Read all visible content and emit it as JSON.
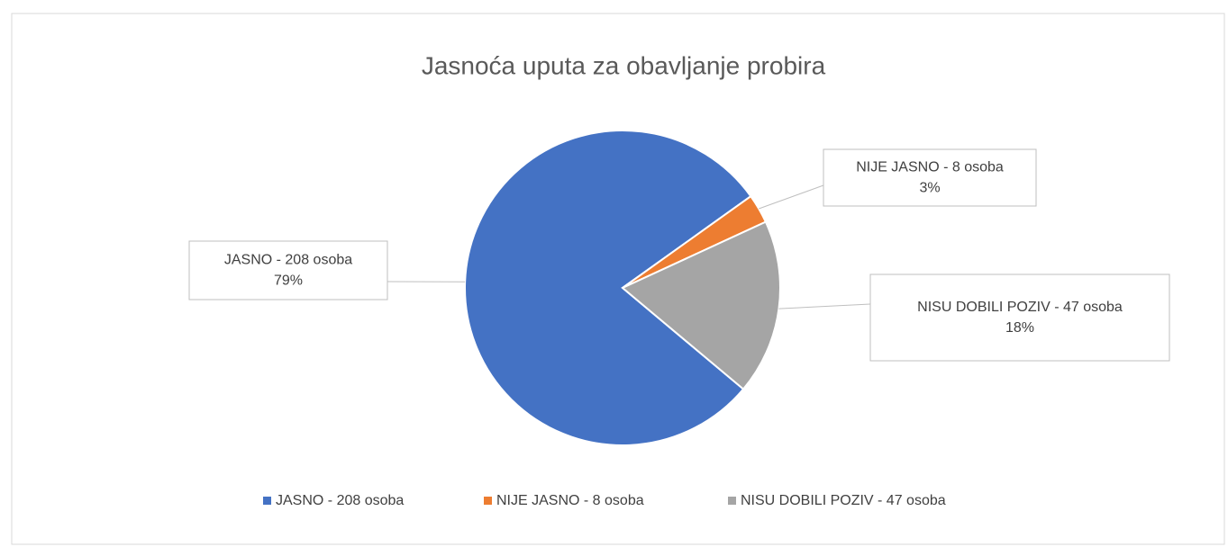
{
  "chart_data": {
    "type": "pie",
    "title": "Jasnoća uputa za obavljanje probira",
    "categories": [
      "JASNO - 208 osoba",
      "NIJE JASNO - 8 osoba",
      "NISU DOBILI POZIV - 47 osoba"
    ],
    "values": [
      79,
      3,
      18
    ],
    "value_labels": [
      "79%",
      "3%",
      "18%"
    ],
    "colors": [
      "#4472c4",
      "#ed7d31",
      "#a5a5a5"
    ],
    "legend": "bottom"
  }
}
